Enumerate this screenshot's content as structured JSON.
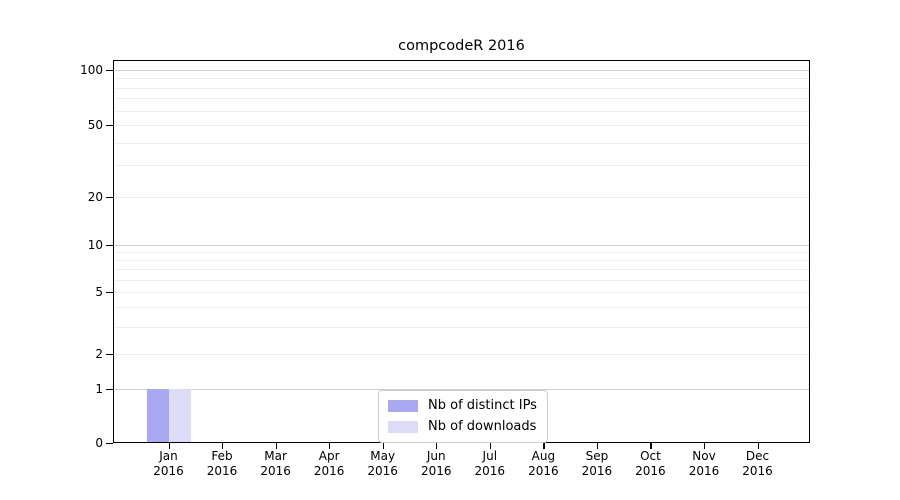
{
  "chart_data": {
    "type": "bar",
    "title": "compcodeR 2016",
    "categories": [
      "Jan 2016",
      "Feb 2016",
      "Mar 2016",
      "Apr 2016",
      "May 2016",
      "Jun 2016",
      "Jul 2016",
      "Aug 2016",
      "Sep 2016",
      "Oct 2016",
      "Nov 2016",
      "Dec 2016"
    ],
    "series": [
      {
        "name": "Nb of distinct IPs",
        "color": "#a9a9f3",
        "values": [
          1,
          0,
          0,
          0,
          0,
          0,
          0,
          0,
          0,
          0,
          0,
          0
        ]
      },
      {
        "name": "Nb of downloads",
        "color": "#dddcf8",
        "values": [
          1,
          0,
          0,
          0,
          0,
          0,
          0,
          0,
          0,
          0,
          0,
          0
        ]
      }
    ],
    "y_axis": {
      "ticks": [
        0,
        1,
        2,
        5,
        10,
        20,
        50,
        100
      ],
      "scale": "log",
      "range": [
        0,
        110
      ]
    },
    "x_axis": {
      "tick_count": 12
    },
    "grid": {
      "major_values": [
        1,
        10,
        100
      ],
      "minor_values": [
        2,
        3,
        4,
        5,
        6,
        7,
        8,
        9,
        20,
        30,
        40,
        50,
        60,
        70,
        80,
        90
      ],
      "major_color": "#d0d0d0",
      "minor_color": "#ededed"
    },
    "legend": {
      "position": "bottom-center",
      "entries": [
        "Nb of distinct IPs",
        "Nb of downloads"
      ]
    }
  }
}
